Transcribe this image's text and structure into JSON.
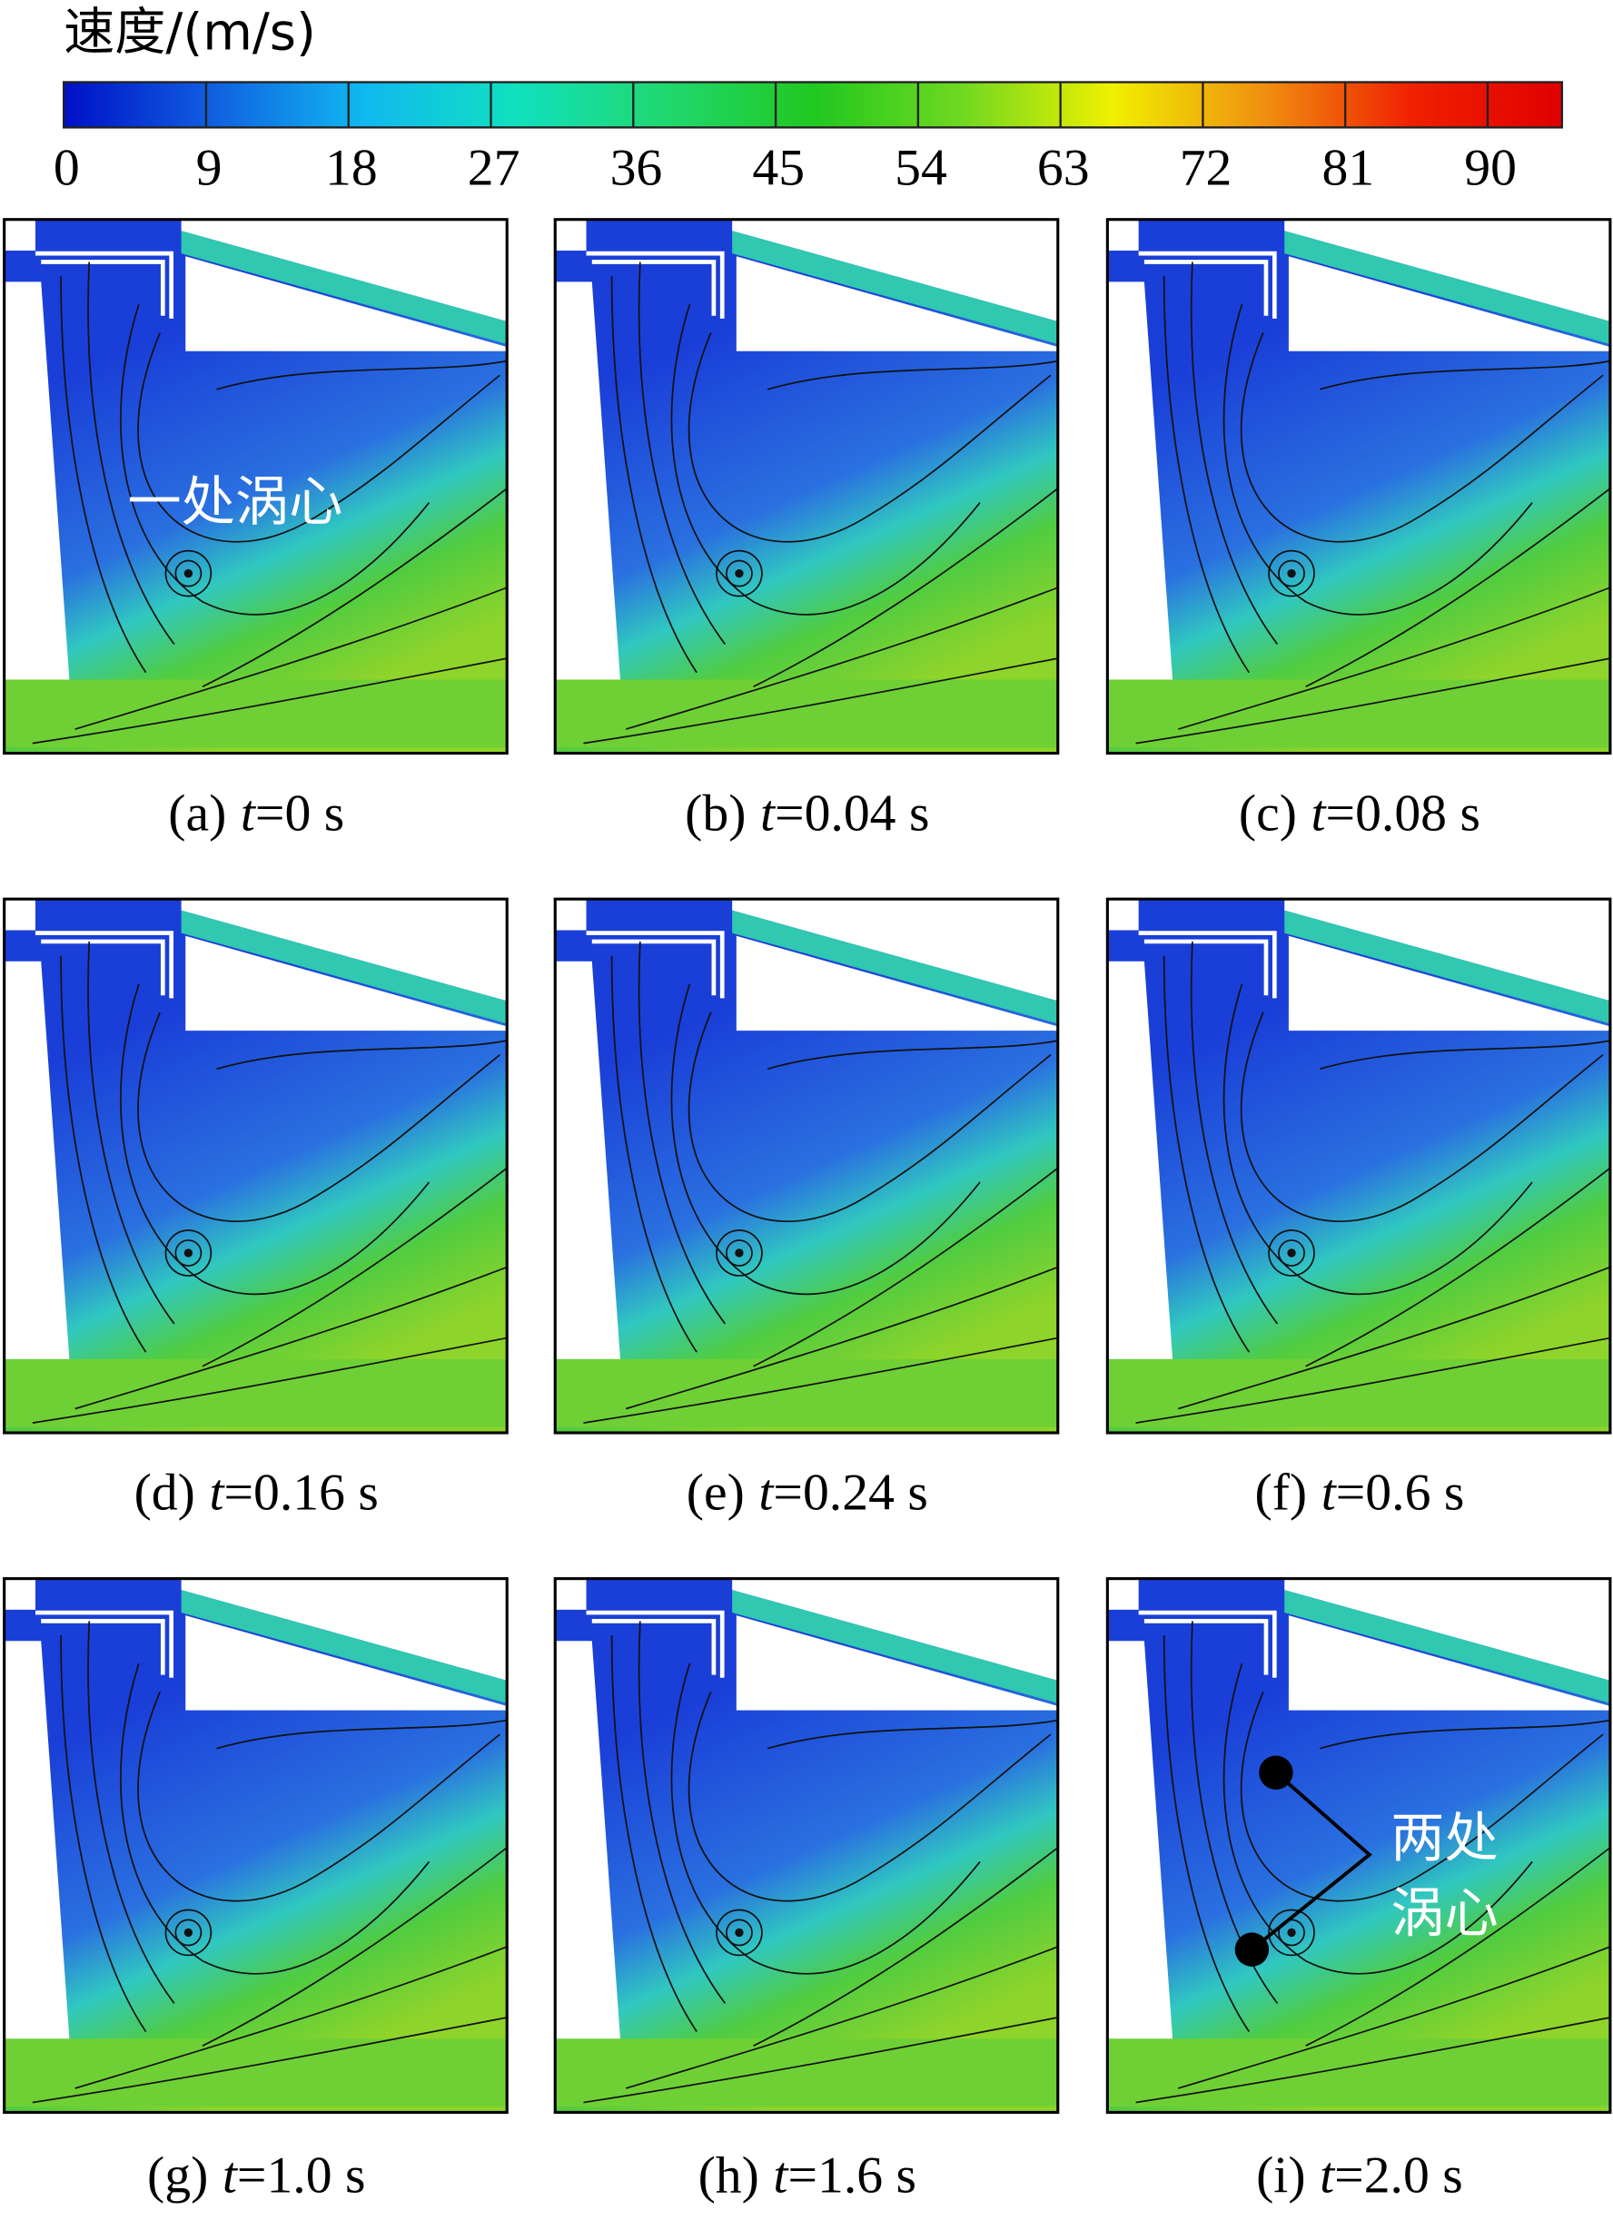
{
  "colorbar": {
    "title": "速度/(m/s)",
    "lim": [
      0,
      94.7
    ],
    "ticks": [
      0,
      9,
      18,
      27,
      36,
      45,
      54,
      63,
      72,
      81,
      90
    ]
  },
  "panels": [
    {
      "label": "(a)",
      "var": "t",
      "value": "=0 s"
    },
    {
      "label": "(b)",
      "var": "t",
      "value": "=0.04 s"
    },
    {
      "label": "(c)",
      "var": "t",
      "value": "=0.08 s"
    },
    {
      "label": "(d)",
      "var": "t",
      "value": "=0.16 s"
    },
    {
      "label": "(e)",
      "var": "t",
      "value": "=0.24 s"
    },
    {
      "label": "(f)",
      "var": "t",
      "value": "=0.6 s"
    },
    {
      "label": "(g)",
      "var": "t",
      "value": "=1.0 s"
    },
    {
      "label": "(h)",
      "var": "t",
      "value": "=1.6 s"
    },
    {
      "label": "(i)",
      "var": "t",
      "value": "=2.0 s"
    }
  ],
  "annotations": {
    "single": "一处涡心",
    "double": [
      "两处",
      "涡心"
    ]
  }
}
